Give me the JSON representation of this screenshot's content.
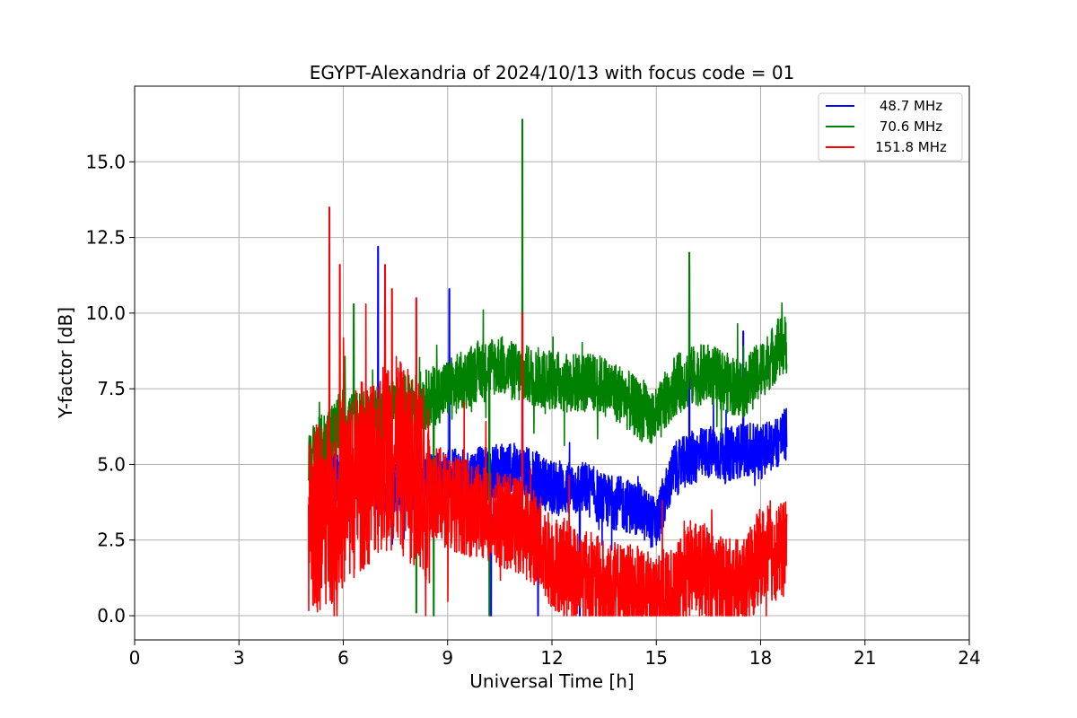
{
  "chart_data": {
    "type": "line",
    "title": "EGYPT-Alexandria of 2024/10/13 with focus code = 01",
    "xlabel": "Universal Time [h]",
    "ylabel": "Y-factor [dB]",
    "xlim": [
      0,
      24
    ],
    "ylim": [
      -0.8,
      17.5
    ],
    "xticks": [
      0,
      3,
      6,
      9,
      12,
      15,
      18,
      21,
      24
    ],
    "yticks": [
      0.0,
      2.5,
      5.0,
      7.5,
      10.0,
      12.5,
      15.0
    ],
    "xtick_labels": [
      "0",
      "3",
      "6",
      "9",
      "12",
      "15",
      "18",
      "21",
      "24"
    ],
    "ytick_labels": [
      "0.0",
      "2.5",
      "5.0",
      "7.5",
      "10.0",
      "12.5",
      "15.0"
    ],
    "grid": true,
    "legend_position": "top-right",
    "colors": {
      "blue": "#0000ff",
      "green": "#008000",
      "red": "#ff0000",
      "grid": "#b0b0b0"
    },
    "series": [
      {
        "name": "48.7 MHz",
        "color": "#0000ff",
        "x": [
          5.0,
          5.5,
          6.0,
          6.5,
          7.0,
          7.5,
          8.0,
          8.5,
          9.0,
          9.5,
          10.0,
          10.5,
          11.0,
          11.5,
          12.0,
          12.5,
          13.0,
          13.5,
          14.0,
          14.5,
          15.0,
          15.5,
          16.0,
          16.5,
          17.0,
          17.5,
          18.0,
          18.5,
          18.75
        ],
        "y": [
          3.3,
          4.5,
          4.6,
          4.5,
          4.3,
          4.3,
          4.4,
          4.5,
          4.6,
          4.6,
          4.7,
          4.8,
          4.8,
          4.6,
          4.2,
          4.2,
          4.2,
          3.8,
          3.7,
          3.5,
          3.0,
          4.8,
          5.2,
          5.4,
          5.3,
          5.5,
          5.4,
          5.8,
          6.0
        ],
        "spikes": [
          [
            7.0,
            12.2
          ],
          [
            9.05,
            10.8
          ],
          [
            11.15,
            9.0
          ],
          [
            17.5,
            9.4
          ],
          [
            15.95,
            11.6
          ],
          [
            10.25,
            0.0
          ],
          [
            12.8,
            0.0
          ],
          [
            11.6,
            0.0
          ]
        ]
      },
      {
        "name": "70.6 MHz",
        "color": "#008000",
        "x": [
          5.0,
          5.5,
          6.0,
          6.5,
          7.0,
          7.5,
          8.0,
          8.5,
          9.0,
          9.5,
          10.0,
          10.5,
          11.0,
          11.5,
          12.0,
          12.5,
          13.0,
          13.5,
          14.0,
          14.5,
          15.0,
          15.5,
          16.0,
          16.5,
          17.0,
          17.5,
          18.0,
          18.5,
          18.75
        ],
        "y": [
          5.2,
          5.8,
          6.5,
          6.4,
          6.6,
          6.9,
          7.0,
          7.2,
          7.5,
          7.8,
          8.2,
          8.3,
          8.0,
          7.9,
          7.8,
          7.7,
          7.7,
          7.6,
          7.3,
          6.8,
          6.5,
          7.6,
          7.9,
          8.0,
          7.7,
          7.5,
          8.1,
          8.8,
          9.0
        ],
        "spikes": [
          [
            11.15,
            16.4
          ],
          [
            15.95,
            12.0
          ],
          [
            6.3,
            10.3
          ],
          [
            8.1,
            0.1
          ],
          [
            8.6,
            0.0
          ],
          [
            10.2,
            0.0
          ],
          [
            18.5,
            9.8
          ]
        ]
      },
      {
        "name": "151.8 MHz",
        "color": "#ff0000",
        "x": [
          5.0,
          5.5,
          6.0,
          6.5,
          7.0,
          7.5,
          8.0,
          8.5,
          9.0,
          9.5,
          10.0,
          10.5,
          11.0,
          11.5,
          12.0,
          12.5,
          13.0,
          13.5,
          14.0,
          14.5,
          15.0,
          15.5,
          16.0,
          16.5,
          17.0,
          17.5,
          18.0,
          18.5,
          18.75
        ],
        "y": [
          3.0,
          3.4,
          4.0,
          4.6,
          5.2,
          5.4,
          4.8,
          4.2,
          3.8,
          3.6,
          3.4,
          3.2,
          3.0,
          2.6,
          1.8,
          1.5,
          1.3,
          0.9,
          0.8,
          0.7,
          0.4,
          0.6,
          1.6,
          1.4,
          1.0,
          0.9,
          2.0,
          2.1,
          2.2
        ],
        "spikes": [
          [
            5.6,
            13.5
          ],
          [
            5.9,
            11.6
          ],
          [
            7.4,
            10.8
          ],
          [
            7.2,
            11.6
          ],
          [
            11.15,
            10.0
          ],
          [
            8.1,
            10.5
          ]
        ]
      }
    ]
  }
}
